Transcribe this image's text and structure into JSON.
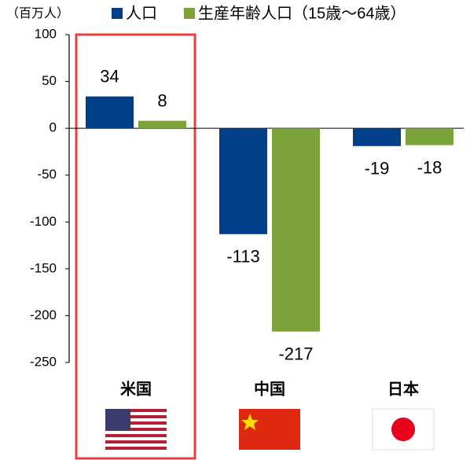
{
  "chart_data": {
    "type": "bar",
    "y_label": "（百万人）",
    "categories": [
      "米国",
      "中国",
      "日本"
    ],
    "series": [
      {
        "name": "人口",
        "color": "#003f8a",
        "values": [
          34,
          -113,
          -19
        ]
      },
      {
        "name": "生産年齢人口（15歳～64歳）",
        "color": "#7ba33a",
        "values": [
          8,
          -217,
          -18
        ]
      }
    ],
    "ylim": [
      -250,
      100
    ],
    "yticks": [
      100,
      50,
      0,
      -50,
      -100,
      -150,
      -200,
      -250
    ],
    "grid": false
  }
}
